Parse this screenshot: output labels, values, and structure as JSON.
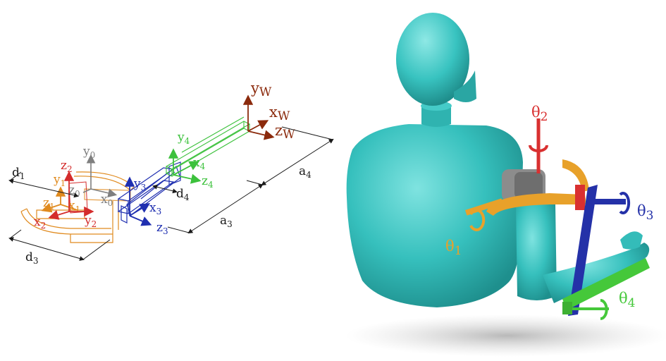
{
  "colors": {
    "frame0": "#7f7f7f",
    "frame1": "#e08a1e",
    "frame2": "#d42c2c",
    "frame3": "#1f2fb0",
    "frame4": "#3cc13c",
    "world": "#8b2a0c",
    "dimension": "#1a1a1a",
    "mannequin": "#3cc6c3",
    "orthosis_orange": "#e8a12a",
    "orthosis_red": "#d93030",
    "orthosis_blue": "#2431a8",
    "orthosis_green": "#45c83a"
  },
  "world_frame": {
    "y": "y",
    "x": "x",
    "z": "z",
    "subscript": "W"
  },
  "frame0": {
    "y": "y",
    "x": "x",
    "z": "z",
    "subscript": "0"
  },
  "frame1": {
    "y": "y",
    "x": "x",
    "z": "z",
    "subscript": "1"
  },
  "frame2": {
    "y": "y",
    "x": "x",
    "z": "z",
    "subscript": "2"
  },
  "frame3": {
    "y": "y",
    "x": "x",
    "z": "z",
    "subscript": "3"
  },
  "frame4": {
    "y": "y",
    "x": "x",
    "z": "z",
    "subscript": "4"
  },
  "dimensions": {
    "d1": {
      "sym": "d",
      "sub": "1"
    },
    "d3": {
      "sym": "d",
      "sub": "3"
    },
    "d4": {
      "sym": "d",
      "sub": "4"
    },
    "a3": {
      "sym": "a",
      "sub": "3"
    },
    "a4": {
      "sym": "a",
      "sub": "4"
    }
  },
  "joints": {
    "theta1": {
      "sym": "θ",
      "sub": "1"
    },
    "theta2": {
      "sym": "θ",
      "sub": "2"
    },
    "theta3": {
      "sym": "θ",
      "sub": "3"
    },
    "theta4": {
      "sym": "θ",
      "sub": "4"
    }
  }
}
